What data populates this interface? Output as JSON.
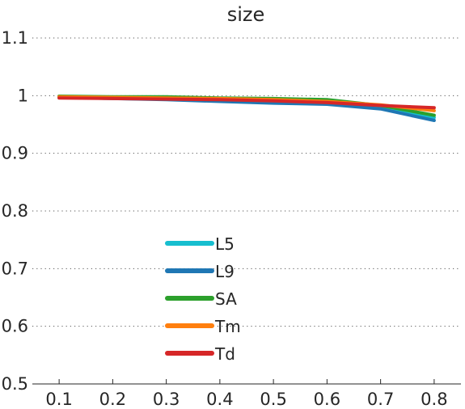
{
  "chart_data": {
    "type": "line",
    "title": "size",
    "xlabel": "",
    "ylabel": "",
    "x": [
      0.1,
      0.2,
      0.3,
      0.4,
      0.5,
      0.6,
      0.7,
      0.8
    ],
    "x_tick_labels": [
      "0.1",
      "0.2",
      "0.3",
      "0.4",
      "0.5",
      "0.6",
      "0.7",
      "0.8"
    ],
    "xlim": [
      0.05,
      0.85
    ],
    "ylim": [
      0.5,
      1.1
    ],
    "y_ticks": [
      0.5,
      0.6,
      0.7,
      0.8,
      0.9,
      1.0,
      1.1
    ],
    "y_tick_labels": [
      "0.5",
      "0.6",
      "0.7",
      "0.8",
      "0.9",
      "1",
      "1.1"
    ],
    "grid": true,
    "legend_position": "center-left",
    "series": [
      {
        "name": "L5",
        "color": "#17becf",
        "values": [
          0.997,
          0.996,
          0.995,
          0.993,
          0.99,
          0.988,
          0.98,
          0.962
        ]
      },
      {
        "name": "L9",
        "color": "#1f77b4",
        "values": [
          0.997,
          0.995,
          0.993,
          0.99,
          0.987,
          0.985,
          0.977,
          0.957
        ]
      },
      {
        "name": "SA",
        "color": "#2ca02c",
        "values": [
          0.999,
          0.998,
          0.998,
          0.996,
          0.995,
          0.993,
          0.983,
          0.966
        ]
      },
      {
        "name": "Tm",
        "color": "#ff7f0e",
        "values": [
          0.998,
          0.997,
          0.996,
          0.995,
          0.993,
          0.99,
          0.984,
          0.974
        ]
      },
      {
        "name": "Td",
        "color": "#d62728",
        "values": [
          0.996,
          0.995,
          0.994,
          0.993,
          0.991,
          0.988,
          0.983,
          0.979
        ]
      }
    ]
  }
}
